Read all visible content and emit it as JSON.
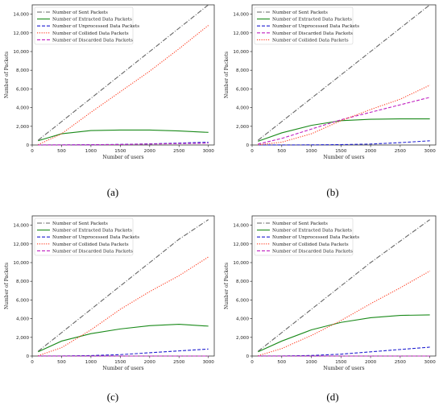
{
  "figure": {
    "panel_labels": [
      "(a)",
      "(b)",
      "(c)",
      "(d)"
    ]
  },
  "chart_data": [
    {
      "type": "line",
      "panel": "(a)",
      "xlabel": "Number of users",
      "ylabel": "Number of Packets",
      "xlim": [
        0,
        3100
      ],
      "ylim": [
        0,
        15000
      ],
      "xticks": [
        0,
        500,
        1000,
        1500,
        2000,
        2500,
        3000
      ],
      "yticks": [
        0,
        2000,
        4000,
        6000,
        8000,
        10000,
        12000,
        14000
      ],
      "ytick_labels": [
        "0",
        "2,000",
        "4,000",
        "6,000",
        "8,000",
        "10,000",
        "12,000",
        "14,000"
      ],
      "legend_position": "top-left",
      "grid": false,
      "x": [
        100,
        500,
        1000,
        1500,
        2000,
        2500,
        3000
      ],
      "series": [
        {
          "name": "Number of Sent Packets",
          "color": "#666666",
          "dash": "dashdot",
          "values": [
            500,
            2500,
            5000,
            7500,
            10000,
            12500,
            15000
          ]
        },
        {
          "name": "Number of Extracted Data Packets",
          "color": "#1a8a1a",
          "dash": "solid",
          "values": [
            450,
            1200,
            1550,
            1600,
            1600,
            1500,
            1350
          ]
        },
        {
          "name": "Number of Unprocessed Data Packets",
          "color": "#1f1fd0",
          "dash": "dashed",
          "values": [
            0,
            10,
            30,
            60,
            120,
            200,
            300
          ]
        },
        {
          "name": "Number of Collided Data Packets",
          "color": "#ff3b1f",
          "dash": "dotted",
          "values": [
            30,
            1200,
            3500,
            5700,
            7900,
            10300,
            12800
          ]
        },
        {
          "name": "Number of Discarded Data Packets",
          "color": "#c020c0",
          "dash": "dashed",
          "values": [
            0,
            5,
            20,
            50,
            100,
            150,
            200
          ]
        }
      ]
    },
    {
      "type": "line",
      "panel": "(b)",
      "xlabel": "Number of users",
      "ylabel": "Number of Packets",
      "xlim": [
        0,
        3100
      ],
      "ylim": [
        0,
        15000
      ],
      "xticks": [
        0,
        500,
        1000,
        1500,
        2000,
        2500,
        3000
      ],
      "yticks": [
        0,
        2000,
        4000,
        6000,
        8000,
        10000,
        12000,
        14000
      ],
      "ytick_labels": [
        "0",
        "2,000",
        "4,000",
        "6,000",
        "8,000",
        "10,000",
        "12,000",
        "14,000"
      ],
      "legend_position": "top-left",
      "grid": false,
      "x": [
        100,
        500,
        1000,
        1500,
        2000,
        2500,
        3000
      ],
      "series": [
        {
          "name": "Number of Sent Packets",
          "color": "#666666",
          "dash": "dashdot",
          "values": [
            500,
            2500,
            5000,
            7500,
            10000,
            12500,
            15000
          ]
        },
        {
          "name": "Number of Extracted Data Packets",
          "color": "#1a8a1a",
          "dash": "solid",
          "values": [
            400,
            1300,
            2100,
            2600,
            2750,
            2800,
            2800
          ]
        },
        {
          "name": "Number of Unprocessed Data Packets",
          "color": "#1f1fd0",
          "dash": "dashed",
          "values": [
            0,
            5,
            15,
            40,
            100,
            250,
            450
          ]
        },
        {
          "name": "Number of Discarded Data Packets",
          "color": "#c020c0",
          "dash": "dashed",
          "values": [
            100,
            700,
            1700,
            2700,
            3500,
            4300,
            5100
          ]
        },
        {
          "name": "Number of Collided Data Packets",
          "color": "#ff3b1f",
          "dash": "dotted",
          "values": [
            20,
            300,
            1200,
            2600,
            3800,
            4900,
            6400
          ]
        }
      ]
    },
    {
      "type": "line",
      "panel": "(c)",
      "xlabel": "Number of users",
      "ylabel": "Number of Packets",
      "xlim": [
        0,
        3100
      ],
      "ylim": [
        0,
        15000
      ],
      "xticks": [
        0,
        500,
        1000,
        1500,
        2000,
        2500,
        3000
      ],
      "yticks": [
        0,
        2000,
        4000,
        6000,
        8000,
        10000,
        12000,
        14000
      ],
      "ytick_labels": [
        "0",
        "2,000",
        "4,000",
        "6,000",
        "8,000",
        "10,000",
        "12,000",
        "14,000"
      ],
      "legend_position": "top-left",
      "grid": false,
      "x": [
        100,
        500,
        1000,
        1500,
        2000,
        2500,
        3000
      ],
      "series": [
        {
          "name": "Number of Sent Packets",
          "color": "#666666",
          "dash": "dashdot",
          "values": [
            500,
            2500,
            5000,
            7500,
            10000,
            12500,
            14600
          ]
        },
        {
          "name": "Number of Extracted Data Packets",
          "color": "#1a8a1a",
          "dash": "solid",
          "values": [
            450,
            1600,
            2400,
            2900,
            3250,
            3400,
            3200
          ]
        },
        {
          "name": "Number of Unprocessed Data Packets",
          "color": "#1f1fd0",
          "dash": "dashed",
          "values": [
            0,
            10,
            50,
            150,
            350,
            550,
            750
          ]
        },
        {
          "name": "Number of Collided Data Packets",
          "color": "#ff3b1f",
          "dash": "dotted",
          "values": [
            30,
            900,
            2800,
            5000,
            6900,
            8600,
            10600
          ]
        },
        {
          "name": "Number of Discarded Data Packets",
          "color": "#c020c0",
          "dash": "dashed",
          "values": [
            0,
            0,
            0,
            0,
            0,
            0,
            0
          ]
        }
      ]
    },
    {
      "type": "line",
      "panel": "(d)",
      "xlabel": "Number of users",
      "ylabel": "Number of Packets",
      "xlim": [
        0,
        3100
      ],
      "ylim": [
        0,
        15000
      ],
      "xticks": [
        0,
        500,
        1000,
        1500,
        2000,
        2500,
        3000
      ],
      "yticks": [
        0,
        2000,
        4000,
        6000,
        8000,
        10000,
        12000,
        14000
      ],
      "ytick_labels": [
        "0",
        "2,000",
        "4,000",
        "6,000",
        "8,000",
        "10,000",
        "12,000",
        "14,000"
      ],
      "legend_position": "top-left",
      "grid": false,
      "x": [
        100,
        500,
        1000,
        1500,
        2000,
        2500,
        3000
      ],
      "series": [
        {
          "name": "Number of Sent Packets",
          "color": "#666666",
          "dash": "dashdot",
          "values": [
            500,
            2500,
            5000,
            7500,
            10000,
            12300,
            14600
          ]
        },
        {
          "name": "Number of Extracted Data Packets",
          "color": "#1a8a1a",
          "dash": "solid",
          "values": [
            450,
            1600,
            2800,
            3600,
            4100,
            4350,
            4400
          ]
        },
        {
          "name": "Number of Unprocessed Data Packets",
          "color": "#1f1fd0",
          "dash": "dashed",
          "values": [
            0,
            10,
            60,
            200,
            450,
            700,
            950
          ]
        },
        {
          "name": "Number of Collided Data Packets",
          "color": "#ff3b1f",
          "dash": "dotted",
          "values": [
            30,
            800,
            2200,
            3800,
            5600,
            7300,
            9100
          ]
        },
        {
          "name": "Number of Discarded Data Packets",
          "color": "#c020c0",
          "dash": "dashed",
          "values": [
            0,
            0,
            0,
            0,
            0,
            0,
            0
          ]
        }
      ]
    }
  ]
}
